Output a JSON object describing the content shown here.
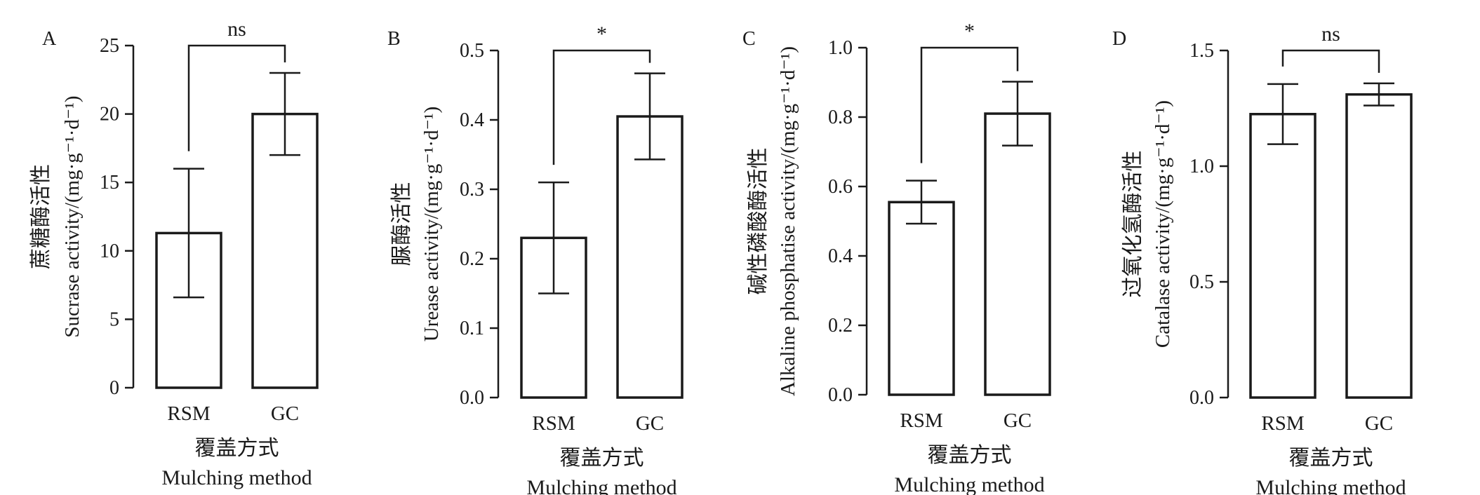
{
  "chart_data": [
    {
      "type": "bar",
      "panel_label": "A",
      "categories": [
        "RSM",
        "GC"
      ],
      "values": [
        11.3,
        20.0
      ],
      "errors": [
        4.7,
        3.0
      ],
      "ylim": [
        0,
        25
      ],
      "yticks": [
        "0",
        "5",
        "10",
        "15",
        "20",
        "25"
      ],
      "ylabel_cn": "蔗糖酶活性",
      "ylabel_en": "Sucrase activity/(mg·g⁻¹·d⁻¹)",
      "xlabel_cn": "覆盖方式",
      "xlabel_en": "Mulching method",
      "significance": "ns",
      "grid": false
    },
    {
      "type": "bar",
      "panel_label": "B",
      "categories": [
        "RSM",
        "GC"
      ],
      "values": [
        0.23,
        0.405
      ],
      "errors": [
        0.08,
        0.062
      ],
      "ylim": [
        0,
        0.5
      ],
      "yticks": [
        "0.0",
        "0.1",
        "0.2",
        "0.3",
        "0.4",
        "0.5"
      ],
      "ylabel_cn": "脲酶活性",
      "ylabel_en": "Urease activity/(mg·g⁻¹·d⁻¹)",
      "xlabel_cn": "覆盖方式",
      "xlabel_en": "Mulching method",
      "significance": "*",
      "grid": false
    },
    {
      "type": "bar",
      "panel_label": "C",
      "categories": [
        "RSM",
        "GC"
      ],
      "values": [
        0.555,
        0.81
      ],
      "errors": [
        0.062,
        0.092
      ],
      "ylim": [
        0,
        1.0
      ],
      "yticks": [
        "0.0",
        "0.2",
        "0.4",
        "0.6",
        "0.8",
        "1.0"
      ],
      "ylabel_cn": "碱性磷酸酶活性",
      "ylabel_en": "Alkaline phosphatise activity/(mg·g⁻¹·d⁻¹)",
      "xlabel_cn": "覆盖方式",
      "xlabel_en": "Mulching method",
      "significance": "*",
      "grid": false
    },
    {
      "type": "bar",
      "panel_label": "D",
      "categories": [
        "RSM",
        "GC"
      ],
      "values": [
        1.225,
        1.31
      ],
      "errors": [
        0.13,
        0.048
      ],
      "ylim": [
        0,
        1.5
      ],
      "yticks": [
        "0.0",
        "0.5",
        "1.0",
        "1.5"
      ],
      "ylabel_cn": "过氧化氢酶活性",
      "ylabel_en": "Catalase activity/(mg·g⁻¹·d⁻¹)",
      "xlabel_cn": "覆盖方式",
      "xlabel_en": "Mulching method",
      "significance": "ns",
      "grid": false
    }
  ],
  "colors": {
    "bar_fill": "#ffffff",
    "stroke": "#1a1a1a",
    "text": "#1a1a1a"
  }
}
